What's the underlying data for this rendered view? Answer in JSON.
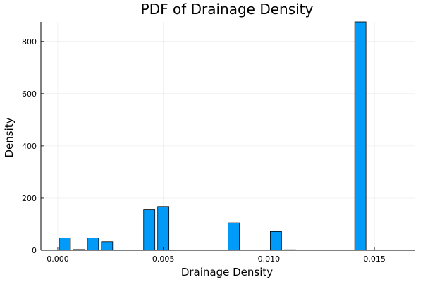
{
  "chart_data": {
    "type": "bar",
    "title": "PDF of Drainage Density",
    "xlabel": "Drainage Density",
    "ylabel": "Density",
    "xlim": [
      -0.0008,
      0.0169
    ],
    "ylim": [
      0,
      875
    ],
    "xticks": [
      0.0,
      0.005,
      0.01,
      0.015
    ],
    "xtick_labels": [
      "0.000",
      "0.005",
      "0.010",
      "0.015"
    ],
    "yticks": [
      0,
      200,
      400,
      600,
      800
    ],
    "ytick_labels": [
      "0",
      "200",
      "400",
      "600",
      "800"
    ],
    "grid": true,
    "legend": "none",
    "bar_color": "#009AF9",
    "bin_width": 0.000667,
    "bins": [
      {
        "x0": 0.0,
        "x1": 0.000667,
        "value": 47
      },
      {
        "x0": 0.000667,
        "x1": 0.001333,
        "value": 3
      },
      {
        "x0": 0.001333,
        "x1": 0.002,
        "value": 47
      },
      {
        "x0": 0.002,
        "x1": 0.002667,
        "value": 33
      },
      {
        "x0": 0.002667,
        "x1": 0.003333,
        "value": 0
      },
      {
        "x0": 0.003333,
        "x1": 0.004,
        "value": 0
      },
      {
        "x0": 0.004,
        "x1": 0.004667,
        "value": 155
      },
      {
        "x0": 0.004667,
        "x1": 0.005333,
        "value": 168
      },
      {
        "x0": 0.005333,
        "x1": 0.006,
        "value": 0
      },
      {
        "x0": 0.006,
        "x1": 0.006667,
        "value": 0
      },
      {
        "x0": 0.006667,
        "x1": 0.007333,
        "value": 0
      },
      {
        "x0": 0.007333,
        "x1": 0.008,
        "value": 0
      },
      {
        "x0": 0.008,
        "x1": 0.008667,
        "value": 105
      },
      {
        "x0": 0.008667,
        "x1": 0.009333,
        "value": 0
      },
      {
        "x0": 0.009333,
        "x1": 0.01,
        "value": 0
      },
      {
        "x0": 0.01,
        "x1": 0.010667,
        "value": 72
      },
      {
        "x0": 0.010667,
        "x1": 0.011333,
        "value": 2
      },
      {
        "x0": 0.011333,
        "x1": 0.012,
        "value": 0
      },
      {
        "x0": 0.012,
        "x1": 0.012667,
        "value": 0
      },
      {
        "x0": 0.012667,
        "x1": 0.013333,
        "value": 0
      },
      {
        "x0": 0.013333,
        "x1": 0.014,
        "value": 0
      },
      {
        "x0": 0.014,
        "x1": 0.014667,
        "value": 875
      },
      {
        "x0": 0.014667,
        "x1": 0.015333,
        "value": 0
      },
      {
        "x0": 0.015333,
        "x1": 0.016,
        "value": 0
      },
      {
        "x0": 0.016,
        "x1": 0.016667,
        "value": 0
      }
    ]
  }
}
